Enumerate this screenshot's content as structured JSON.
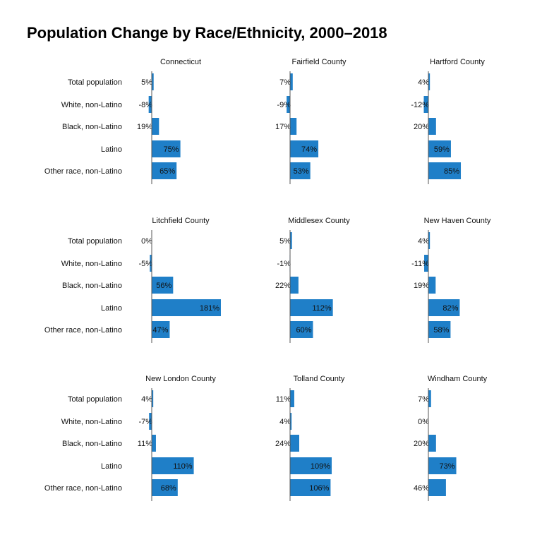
{
  "chart_data": {
    "type": "bar",
    "orientation": "horizontal",
    "title": "Population Change by Race/Ethnicity, 2000–2018",
    "categories": [
      "Total population",
      "White, non-Latino",
      "Black, non-Latino",
      "Latino",
      "Other race, non-Latino"
    ],
    "bar_color": "#1f7fc8",
    "value_suffix": "%",
    "panels": [
      {
        "name": "Connecticut",
        "values": [
          5,
          -8,
          19,
          75,
          65
        ]
      },
      {
        "name": "Fairfield County",
        "values": [
          7,
          -9,
          17,
          74,
          53
        ]
      },
      {
        "name": "Hartford County",
        "values": [
          4,
          -12,
          20,
          59,
          85
        ]
      },
      {
        "name": "Litchfield County",
        "values": [
          0,
          -5,
          56,
          181,
          47
        ]
      },
      {
        "name": "Middlesex County",
        "values": [
          5,
          -1,
          22,
          112,
          60
        ]
      },
      {
        "name": "New Haven County",
        "values": [
          4,
          -11,
          19,
          82,
          58
        ]
      },
      {
        "name": "New London County",
        "values": [
          4,
          -7,
          11,
          110,
          68
        ]
      },
      {
        "name": "Tolland County",
        "values": [
          11,
          4,
          24,
          109,
          106
        ]
      },
      {
        "name": "Windham County",
        "values": [
          7,
          0,
          20,
          73,
          46
        ]
      }
    ]
  }
}
